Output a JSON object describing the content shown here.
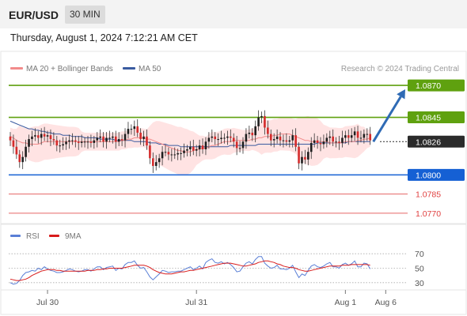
{
  "header": {
    "pair": "EUR/USD",
    "timeframe": "30 MIN",
    "datetime": "Thursday, August 1, 2024 7:12:21 AM CET"
  },
  "legend": {
    "ma20": "MA 20 + Bollinger Bands",
    "ma50": "MA 50",
    "credit": "Research © 2024 Trading Central",
    "rsi": "RSI",
    "nine_ma": "9MA"
  },
  "colors": {
    "resistance": "#5fa10f",
    "current": "#2b2b2b",
    "support": "#1560d4",
    "target": "#e04040",
    "ma20": "#f28b8b",
    "ma50": "#3a5ba0",
    "bollinger": "#ffd9d9",
    "candle_up": "#1e1e1e",
    "candle_down": "#d42b2b",
    "arrow": "#2f6bb5",
    "rsi": "#5a7fd6",
    "rsi_ma": "#d81b1b"
  },
  "chart_data": {
    "type": "candlestick",
    "y_range": [
      1.0765,
      1.0875
    ],
    "levels": [
      {
        "label": "1.0870",
        "value": 1.087,
        "kind": "resistance"
      },
      {
        "label": "1.0845",
        "value": 1.0845,
        "kind": "resistance"
      },
      {
        "label": "1.0826",
        "value": 1.0826,
        "kind": "current"
      },
      {
        "label": "1.0800",
        "value": 1.08,
        "kind": "support"
      },
      {
        "label": "1.0785",
        "value": 1.0785,
        "kind": "target"
      },
      {
        "label": "1.0770",
        "value": 1.077,
        "kind": "target"
      }
    ],
    "x_labels": [
      "Jul 30",
      "Jul 31",
      "Aug 1",
      "Aug 6"
    ],
    "x_label_index": [
      12,
      60,
      108,
      121
    ],
    "projection": {
      "from_index": 117,
      "from_value": 1.0826,
      "to_value": 1.0867
    },
    "close": [
      1.0827,
      1.0822,
      1.0816,
      1.081,
      1.0814,
      1.0822,
      1.0828,
      1.083,
      1.0831,
      1.0829,
      1.0832,
      1.083,
      1.0831,
      1.0828,
      1.0827,
      1.0823,
      1.0823,
      1.0824,
      1.0826,
      1.0827,
      1.0827,
      1.0826,
      1.0825,
      1.0826,
      1.0826,
      1.0826,
      1.0825,
      1.0827,
      1.0829,
      1.083,
      1.0826,
      1.0829,
      1.0829,
      1.083,
      1.0826,
      1.0828,
      1.0827,
      1.0832,
      1.0836,
      1.0836,
      1.0838,
      1.0833,
      1.0828,
      1.083,
      1.0823,
      1.0813,
      1.0807,
      1.081,
      1.0813,
      1.0818,
      1.0818,
      1.0816,
      1.0816,
      1.0816,
      1.0817,
      1.0817,
      1.0819,
      1.082,
      1.0822,
      1.0819,
      1.082,
      1.0823,
      1.082,
      1.0826,
      1.0829,
      1.083,
      1.0828,
      1.0828,
      1.0829,
      1.0829,
      1.083,
      1.0829,
      1.0826,
      1.0821,
      1.0821,
      1.0826,
      1.0832,
      1.0833,
      1.0831,
      1.0838,
      1.0845,
      1.0846,
      1.0837,
      1.0832,
      1.0827,
      1.0828,
      1.083,
      1.0827,
      1.0827,
      1.0826,
      1.0827,
      1.0831,
      1.0822,
      1.0809,
      1.0814,
      1.0812,
      1.0818,
      1.0825,
      1.0827,
      1.0825,
      1.0824,
      1.0826,
      1.0829,
      1.083,
      1.0826,
      1.0826,
      1.0825,
      1.0829,
      1.0831,
      1.0829,
      1.0831,
      1.0834,
      1.0829,
      1.0829,
      1.0832,
      1.0832,
      1.0827
    ],
    "ma20": [
      1.083,
      1.0829,
      1.0827,
      1.0826,
      1.0825,
      1.0825,
      1.0824,
      1.0824,
      1.0824,
      1.0824,
      1.0825,
      1.0826,
      1.0826,
      1.0826,
      1.0826,
      1.0826,
      1.0826,
      1.0826,
      1.0826,
      1.0826,
      1.0826,
      1.0826,
      1.0826,
      1.0826,
      1.0826,
      1.0826,
      1.0826,
      1.0826,
      1.0826,
      1.0826,
      1.0826,
      1.0826,
      1.0826,
      1.0826,
      1.0826,
      1.0826,
      1.0827,
      1.0827,
      1.0828,
      1.0828,
      1.0829,
      1.0829,
      1.0829,
      1.0829,
      1.0828,
      1.0828,
      1.0827,
      1.0826,
      1.0825,
      1.0824,
      1.0823,
      1.0822,
      1.0821,
      1.082,
      1.0819,
      1.0819,
      1.0818,
      1.0818,
      1.0818,
      1.0819,
      1.082,
      1.082,
      1.0821,
      1.0821,
      1.0822,
      1.0823,
      1.0823,
      1.0824,
      1.0825,
      1.0826,
      1.0826,
      1.0826,
      1.0827,
      1.0827,
      1.0827,
      1.0827,
      1.0827,
      1.0827,
      1.0828,
      1.0828,
      1.0829,
      1.0829,
      1.083,
      1.083,
      1.083,
      1.0831,
      1.0831,
      1.0832,
      1.0832,
      1.0832,
      1.0832,
      1.0831,
      1.083,
      1.0829,
      1.0828,
      1.0827,
      1.0827,
      1.0826,
      1.0826,
      1.0826,
      1.0826,
      1.0826,
      1.0826,
      1.0825,
      1.0825,
      1.0825,
      1.0825,
      1.0825,
      1.0826,
      1.0826,
      1.0826,
      1.0826,
      1.0827,
      1.0827,
      1.0828,
      1.0828,
      1.0829
    ],
    "ma50": [
      1.0842,
      1.0841,
      1.084,
      1.0839,
      1.0838,
      1.0837,
      1.0836,
      1.0836,
      1.0835,
      1.0835,
      1.0834,
      1.0834,
      1.0833,
      1.0833,
      1.0832,
      1.0832,
      1.0832,
      1.0831,
      1.0831,
      1.0831,
      1.083,
      1.083,
      1.083,
      1.083,
      1.0829,
      1.0829,
      1.0829,
      1.0829,
      1.0829,
      1.0828,
      1.0828,
      1.0828,
      1.0828,
      1.0828,
      1.0827,
      1.0827,
      1.0827,
      1.0827,
      1.0827,
      1.0827,
      1.0826,
      1.0826,
      1.0826,
      1.0826,
      1.0826,
      1.0825,
      1.0825,
      1.0825,
      1.0824,
      1.0824,
      1.0824,
      1.0823,
      1.0823,
      1.0823,
      1.0823,
      1.0822,
      1.0822,
      1.0822,
      1.0822,
      1.0822,
      1.0822,
      1.0822,
      1.0822,
      1.0822,
      1.0822,
      1.0822,
      1.0822,
      1.0822,
      1.0822,
      1.0822,
      1.0822,
      1.0823,
      1.0823,
      1.0823,
      1.0823,
      1.0823,
      1.0823,
      1.0823,
      1.0823,
      1.0823,
      1.0824,
      1.0824,
      1.0824,
      1.0824,
      1.0824,
      1.0824,
      1.0824,
      1.0824,
      1.0824,
      1.0824,
      1.0824,
      1.0824,
      1.0824,
      1.0824,
      1.0824,
      1.0824,
      1.0824,
      1.0824,
      1.0824,
      1.0825,
      1.0825,
      1.0825,
      1.0825,
      1.0825,
      1.0825,
      1.0825,
      1.0825,
      1.0825,
      1.0825,
      1.0826,
      1.0826,
      1.0826,
      1.0826,
      1.0826,
      1.0826,
      1.0826,
      1.0826
    ],
    "rsi_panel": {
      "y_range": [
        20,
        80
      ],
      "ticks": [
        70,
        50,
        30
      ],
      "rsi": [
        30,
        28,
        29,
        33,
        40,
        44,
        45,
        47,
        46,
        50,
        48,
        52,
        49,
        47,
        46,
        44,
        44,
        45,
        47,
        49,
        48,
        46,
        45,
        46,
        48,
        48,
        46,
        49,
        52,
        52,
        48,
        51,
        52,
        53,
        47,
        50,
        49,
        55,
        58,
        58,
        60,
        54,
        50,
        51,
        45,
        38,
        34,
        38,
        42,
        47,
        46,
        44,
        45,
        45,
        46,
        46,
        48,
        50,
        52,
        48,
        50,
        53,
        49,
        58,
        61,
        63,
        58,
        57,
        59,
        56,
        58,
        55,
        51,
        45,
        46,
        52,
        57,
        59,
        56,
        62,
        66,
        66,
        57,
        53,
        50,
        51,
        54,
        49,
        49,
        48,
        50,
        54,
        45,
        37,
        42,
        40,
        47,
        53,
        55,
        52,
        51,
        53,
        56,
        58,
        52,
        52,
        50,
        55,
        57,
        54,
        56,
        60,
        52,
        52,
        57,
        56,
        49
      ],
      "rsi_ma": [
        35,
        34,
        33,
        33,
        34,
        35,
        37,
        40,
        42,
        44,
        46,
        47,
        48,
        48,
        48,
        47,
        47,
        46,
        46,
        46,
        46,
        46,
        46,
        46,
        46,
        47,
        47,
        47,
        48,
        48,
        49,
        49,
        50,
        50,
        50,
        50,
        50,
        51,
        52,
        53,
        54,
        54,
        54,
        54,
        53,
        51,
        48,
        46,
        44,
        43,
        42,
        42,
        42,
        43,
        44,
        45,
        45,
        46,
        47,
        47,
        48,
        49,
        50,
        51,
        52,
        53,
        54,
        55,
        56,
        57,
        57,
        57,
        56,
        55,
        54,
        53,
        53,
        54,
        55,
        56,
        58,
        59,
        60,
        60,
        59,
        58,
        56,
        55,
        53,
        52,
        51,
        51,
        50,
        48,
        47,
        46,
        46,
        47,
        48,
        49,
        50,
        51,
        52,
        53,
        53,
        53,
        53,
        54,
        54,
        54,
        55,
        55,
        55,
        55,
        55,
        55,
        54
      ]
    }
  }
}
